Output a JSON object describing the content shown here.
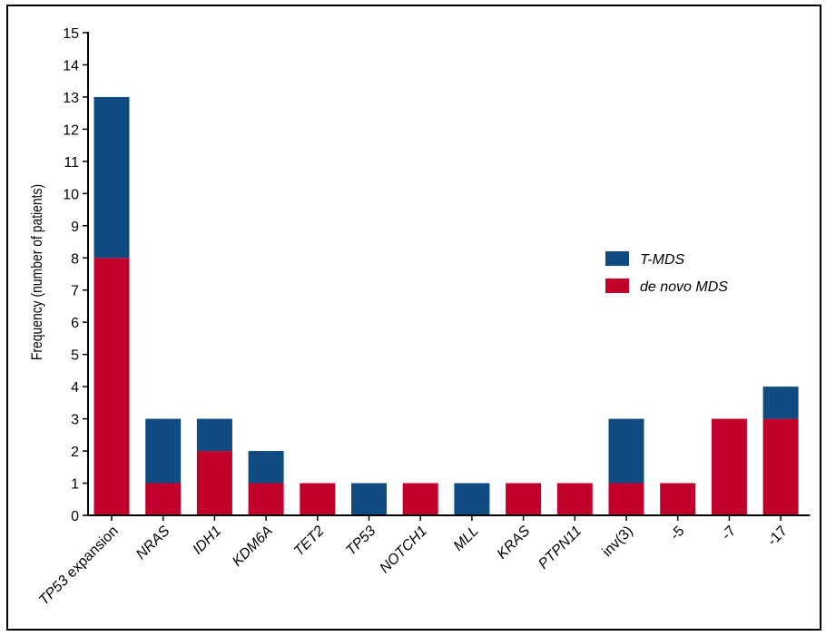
{
  "chart_data": {
    "type": "bar",
    "stacked": true,
    "ylabel": "Frequency (number of patients)",
    "ylim": [
      0,
      15
    ],
    "yticks": [
      0,
      1,
      2,
      3,
      4,
      5,
      6,
      7,
      8,
      9,
      10,
      11,
      12,
      13,
      14,
      15
    ],
    "categories": [
      {
        "label": "TP53 expansion",
        "italic_part": "TP53",
        "plain_part": " expansion"
      },
      {
        "label": "NRAS",
        "italic_part": "NRAS",
        "plain_part": ""
      },
      {
        "label": "IDH1",
        "italic_part": "IDH1",
        "plain_part": ""
      },
      {
        "label": "KDM6A",
        "italic_part": "KDM6A",
        "plain_part": ""
      },
      {
        "label": "TET2",
        "italic_part": "TET2",
        "plain_part": ""
      },
      {
        "label": "TP53",
        "italic_part": "TP53",
        "plain_part": ""
      },
      {
        "label": "NOTCH1",
        "italic_part": "NOTCH1",
        "plain_part": ""
      },
      {
        "label": "MLL",
        "italic_part": "MLL",
        "plain_part": ""
      },
      {
        "label": "KRAS",
        "italic_part": "KRAS",
        "plain_part": ""
      },
      {
        "label": "PTPN11",
        "italic_part": "PTPN11",
        "plain_part": ""
      },
      {
        "label": "inv(3)",
        "italic_part": "",
        "plain_part": "inv(3)"
      },
      {
        "label": "-5",
        "italic_part": "",
        "plain_part": "-5"
      },
      {
        "label": "-7",
        "italic_part": "",
        "plain_part": "-7"
      },
      {
        "label": "-17",
        "italic_part": "",
        "plain_part": "-17"
      }
    ],
    "series": [
      {
        "name": "de novo MDS",
        "color": "#c0002a",
        "values": [
          8,
          1,
          2,
          1,
          1,
          0,
          1,
          0,
          1,
          1,
          1,
          1,
          3,
          3
        ]
      },
      {
        "name": "T-MDS",
        "color": "#0f4a80",
        "values": [
          5,
          2,
          1,
          1,
          0,
          1,
          0,
          1,
          0,
          0,
          2,
          0,
          0,
          1
        ]
      }
    ],
    "legend": {
      "placement": "right",
      "entries": [
        {
          "label": "T-MDS",
          "color": "#0f4a80"
        },
        {
          "label": "de novo MDS",
          "color": "#c0002a"
        }
      ]
    },
    "grid": false
  }
}
